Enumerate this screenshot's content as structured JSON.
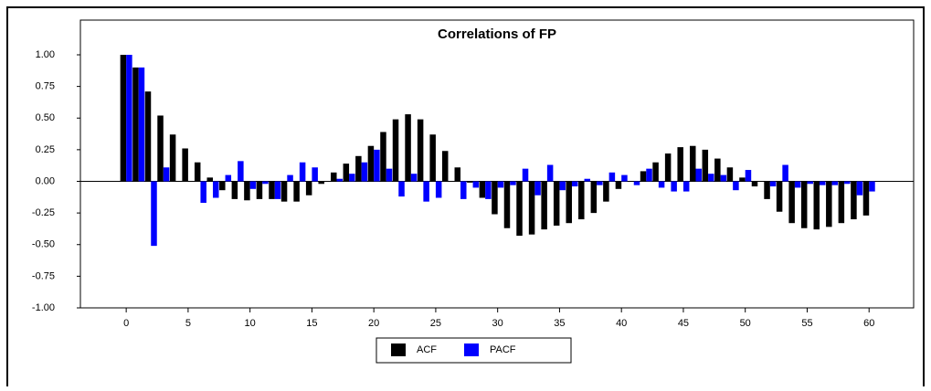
{
  "chart_data": {
    "type": "bar",
    "title": "Correlations of FP",
    "x": [
      0,
      1,
      2,
      3,
      4,
      5,
      6,
      7,
      8,
      9,
      10,
      11,
      12,
      13,
      14,
      15,
      16,
      17,
      18,
      19,
      20,
      21,
      22,
      23,
      24,
      25,
      26,
      27,
      28,
      29,
      30,
      31,
      32,
      33,
      34,
      35,
      36,
      37,
      38,
      39,
      40,
      41,
      42,
      43,
      44,
      45,
      46,
      47,
      48,
      49,
      50,
      51,
      52,
      53,
      54,
      55,
      56,
      57,
      58,
      59,
      60
    ],
    "series": [
      {
        "name": "ACF",
        "color": "#000000",
        "values": [
          1.0,
          0.9,
          0.71,
          0.52,
          0.37,
          0.26,
          0.15,
          0.03,
          -0.07,
          -0.14,
          -0.15,
          -0.14,
          -0.14,
          -0.16,
          -0.16,
          -0.11,
          -0.02,
          0.07,
          0.14,
          0.2,
          0.28,
          0.39,
          0.49,
          0.53,
          0.49,
          0.37,
          0.24,
          0.11,
          -0.01,
          -0.13,
          -0.26,
          -0.37,
          -0.43,
          -0.42,
          -0.38,
          -0.35,
          -0.33,
          -0.3,
          -0.25,
          -0.16,
          -0.06,
          0.0,
          0.08,
          0.15,
          0.22,
          0.27,
          0.28,
          0.25,
          0.18,
          0.11,
          0.03,
          -0.04,
          -0.14,
          -0.24,
          -0.33,
          -0.37,
          -0.38,
          -0.36,
          -0.33,
          -0.3,
          -0.27
        ]
      },
      {
        "name": "PACF",
        "color": "#0000ff",
        "values": [
          1.0,
          0.9,
          -0.51,
          0.11,
          0.0,
          0.0,
          -0.17,
          -0.13,
          0.05,
          0.16,
          -0.06,
          -0.02,
          -0.14,
          0.05,
          0.15,
          0.11,
          0.0,
          0.02,
          0.06,
          0.15,
          0.25,
          0.1,
          -0.12,
          0.06,
          -0.16,
          -0.13,
          0.0,
          -0.14,
          -0.05,
          -0.14,
          -0.05,
          -0.03,
          0.1,
          -0.11,
          0.13,
          -0.07,
          -0.04,
          0.02,
          -0.03,
          0.07,
          0.05,
          -0.03,
          0.1,
          -0.05,
          -0.08,
          -0.08,
          0.1,
          0.06,
          0.05,
          -0.07,
          0.09,
          0.0,
          -0.04,
          0.13,
          -0.05,
          -0.02,
          -0.03,
          -0.03,
          -0.02,
          -0.11,
          -0.08
        ]
      }
    ],
    "xlim": [
      -3.7,
      63.6
    ],
    "xticks": [
      0,
      5,
      10,
      15,
      20,
      25,
      30,
      35,
      40,
      45,
      50,
      55,
      60
    ],
    "ylim": [
      -1,
      1
    ],
    "yticks": [
      {
        "value": -1,
        "label": "-1.00"
      },
      {
        "value": -0.75,
        "label": "-0.75"
      },
      {
        "value": -0.5,
        "label": "-0.50"
      },
      {
        "value": -0.25,
        "label": "-0.25"
      },
      {
        "value": 0,
        "label": "0.00"
      },
      {
        "value": 0.25,
        "label": "0.25"
      },
      {
        "value": 0.5,
        "label": "0.50"
      },
      {
        "value": 0.75,
        "label": "0.75"
      },
      {
        "value": 1,
        "label": "1.00"
      }
    ],
    "legend": "bottom"
  }
}
